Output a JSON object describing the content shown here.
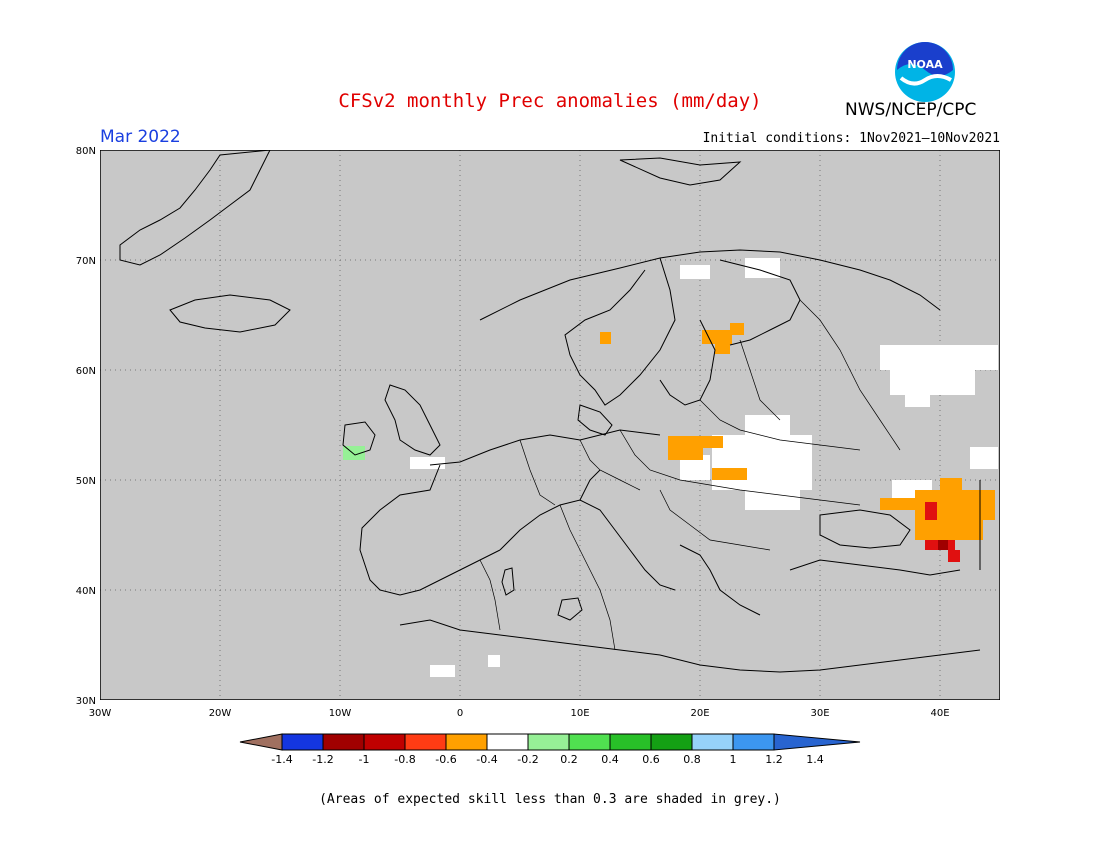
{
  "header": {
    "title": "CFSv2 monthly Prec anomalies (mm/day)",
    "org": "NWS/NCEP/CPC",
    "logo_text": "NOAA",
    "month": "Mar 2022",
    "initial_conditions": "Initial conditions: 1Nov2021—10Nov2021"
  },
  "map": {
    "lat_labels": [
      "80N",
      "70N",
      "60N",
      "50N",
      "40N",
      "30N"
    ],
    "lon_labels": [
      "30W",
      "20W",
      "10W",
      "0",
      "10E",
      "20E",
      "30E",
      "40E"
    ],
    "extent": {
      "lon": [
        -30,
        45
      ],
      "lat": [
        30,
        80
      ]
    },
    "colors": {
      "grey": "#c8c8c8",
      "white": "#ffffff",
      "orange": "#ffa000",
      "red": "#e01010",
      "darkred": "#a00000",
      "lightgreen": "#96f096"
    }
  },
  "colorbar": {
    "colors": [
      "#a07060",
      "#1436e0",
      "#a00000",
      "#c00000",
      "#ff3c14",
      "#ffa000",
      "#ffffff",
      "#96f096",
      "#50e050",
      "#28c028",
      "#14a014",
      "#96d2fa",
      "#3c96f0",
      "#2864d0"
    ],
    "tick_labels": [
      "-1.4",
      "-1.2",
      "-1",
      "-0.8",
      "-0.6",
      "-0.4",
      "-0.2",
      "0.2",
      "0.4",
      "0.6",
      "0.8",
      "1",
      "1.2",
      "1.4"
    ]
  },
  "footnote": "(Areas of expected skill less than 0.3 are shaded in grey.)"
}
